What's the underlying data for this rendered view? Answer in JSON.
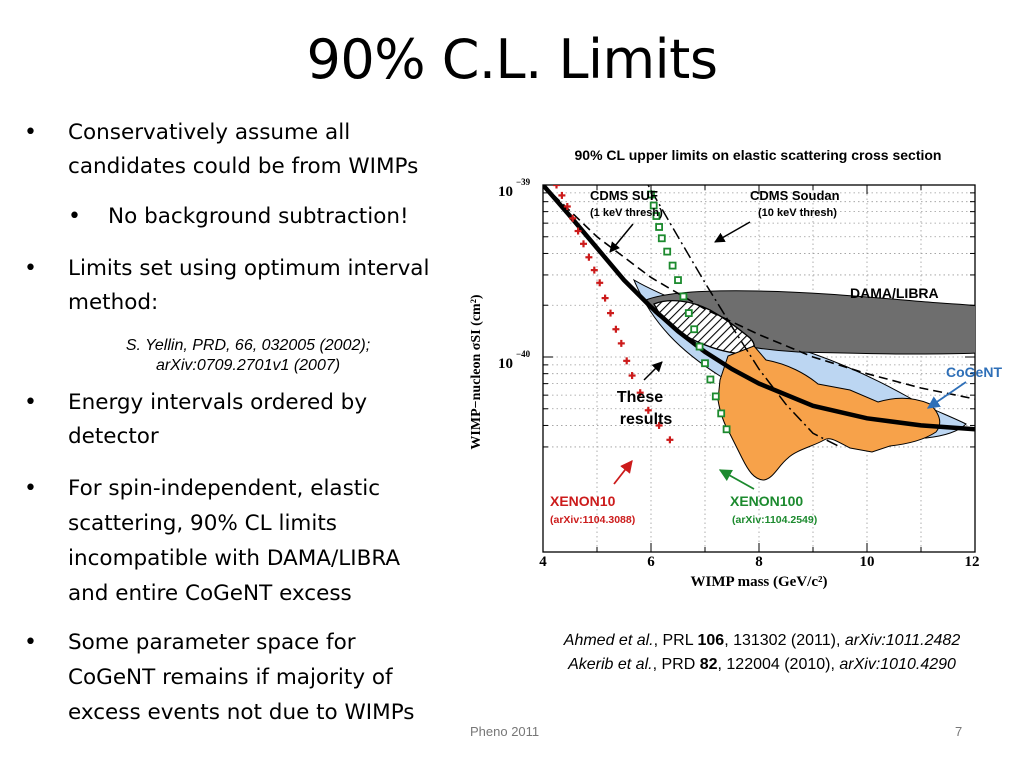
{
  "slide": {
    "title": "90% C.L. Limits",
    "footer_left": "Pheno 2011",
    "page_number": "7"
  },
  "bullets": [
    {
      "lines": [
        "Conservatively assume all",
        "candidates could be from WIMPs"
      ],
      "level": 1
    },
    {
      "lines": [
        "No background subtraction!"
      ],
      "level": 2
    },
    {
      "lines": [
        "Limits set using optimum interval",
        "method:"
      ],
      "level": 1
    },
    {
      "lines": [
        "Energy intervals ordered by",
        "detector"
      ],
      "level": 1
    },
    {
      "lines": [
        "For spin-independent, elastic",
        "scattering, 90% CL limits",
        "incompatible with DAMA/LIBRA",
        "and entire CoGeNT excess"
      ],
      "level": 1
    },
    {
      "lines": [
        "Some parameter space for",
        "CoGeNT remains if majority of",
        "excess events not due to WIMPs"
      ],
      "level": 1
    }
  ],
  "citation": [
    "S. Yellin, PRD, 66, 032005 (2002);",
    "arXiv:0709.2701v1 (2007)"
  ],
  "references": [
    {
      "authors": "Ahmed et al.",
      "journal": ", PRL ",
      "volume": "106",
      "rest": ", 131302 (2011), ",
      "arxiv": "arXiv:1011.2482"
    },
    {
      "authors": "Akerib et al.",
      "journal": ", PRD ",
      "volume": "82",
      "rest": ", 122004 (2010), ",
      "arxiv": "arXiv:1010.4290"
    }
  ],
  "chart_data": {
    "type": "line",
    "title": "90% CL upper limits on elastic scattering cross section",
    "xlabel": "WIMP mass (GeV/c²)",
    "ylabel": "WIMP−nucleon σSI (cm²)",
    "xlim": [
      4,
      12
    ],
    "ylim": [
      3e-41,
      1.2e-39
    ],
    "yscale": "log",
    "x_ticks": [
      "4",
      "6",
      "8",
      "10",
      "12"
    ],
    "y_ticks": [
      {
        "base": "10",
        "exp": "−39"
      },
      {
        "base": "10",
        "exp": "−40"
      }
    ],
    "grid": "dotted",
    "colors": {
      "xenon10": "#cc1b1b",
      "xenon100": "#1c8a2e",
      "dama": "#6e6e6e",
      "cogent_region": "#f7a24a",
      "cogent_band": "#bcd6f2",
      "cogent_label": "#2e6fb8"
    },
    "series": [
      {
        "name": "These results",
        "style": "thick solid",
        "x": [
          4.0,
          4.5,
          5.0,
          5.5,
          6.0,
          6.5,
          7.0,
          7.5,
          8.0,
          9.0,
          10.0,
          11.0,
          12.0
        ],
        "y": [
          1e-39,
          6.6e-40,
          4.3e-40,
          2.8e-40,
          1.95e-40,
          1.41e-40,
          1.07e-40,
          8.5e-41,
          7e-41,
          5.2e-41,
          4.4e-41,
          4e-41,
          3.8e-41
        ]
      },
      {
        "name": "CDMS SUF (1 keV thresh)",
        "style": "dashed",
        "x": [
          4.0,
          5.0,
          6.0,
          7.0,
          8.0,
          9.0,
          10.0,
          11.0,
          12.0
        ],
        "y": [
          1e-39,
          5e-40,
          2.9e-40,
          1.9e-40,
          1.35e-40,
          1e-40,
          8e-41,
          6.6e-41,
          5.7e-41
        ]
      },
      {
        "name": "CDMS Soudan (10 keV thresh)",
        "style": "dash-dot",
        "x": [
          5.8,
          6.5,
          7.0,
          7.5,
          8.0,
          8.5,
          9.0,
          9.5
        ],
        "y": [
          1.2e-39,
          5e-40,
          2.7e-40,
          1.5e-40,
          8.5e-41,
          5.3e-41,
          3.6e-41,
          3e-41
        ]
      },
      {
        "name": "XENON10 (arXiv:1104.3088)",
        "style": "red crosses",
        "x": [
          4.25,
          4.35,
          4.45,
          4.55,
          4.65,
          4.75,
          4.85,
          4.95,
          5.05,
          5.15,
          5.25,
          5.35,
          5.45,
          5.55,
          5.65,
          5.8,
          5.95,
          6.15,
          6.35
        ],
        "y": [
          1e-39,
          8.7e-40,
          7.5e-40,
          6.4e-40,
          5.4e-40,
          4.55e-40,
          3.8e-40,
          3.2e-40,
          2.7e-40,
          2.2e-40,
          1.8e-40,
          1.45e-40,
          1.2e-40,
          9.5e-41,
          7.8e-41,
          6.2e-41,
          4.9e-41,
          4e-41,
          3.3e-41
        ]
      },
      {
        "name": "XENON100 (arXiv:1104.2549)",
        "style": "green open squares",
        "x": [
          6.0,
          6.05,
          6.1,
          6.15,
          6.2,
          6.3,
          6.4,
          6.5,
          6.6,
          6.7,
          6.8,
          6.9,
          7.0,
          7.1,
          7.2,
          7.3,
          7.4
        ],
        "y": [
          8.8e-40,
          7.6e-40,
          6.6e-40,
          5.7e-40,
          4.9e-40,
          4.1e-40,
          3.4e-40,
          2.8e-40,
          2.25e-40,
          1.8e-40,
          1.45e-40,
          1.15e-40,
          9.2e-41,
          7.4e-41,
          5.9e-41,
          4.7e-41,
          3.8e-41
        ]
      }
    ],
    "regions": [
      {
        "name": "DAMA/LIBRA",
        "fill": "gray"
      },
      {
        "name": "CoGeNT",
        "fill": "orange and light blue"
      }
    ],
    "annotations": [
      "CDMS SUF",
      "(1 keV thresh)",
      "CDMS Soudan",
      "(10 keV thresh)",
      "DAMA/LIBRA",
      "CoGeNT",
      "These",
      "results",
      "XENON10",
      "(arXiv:1104.3088)",
      "XENON100",
      "(arXiv:1104.2549)"
    ]
  }
}
